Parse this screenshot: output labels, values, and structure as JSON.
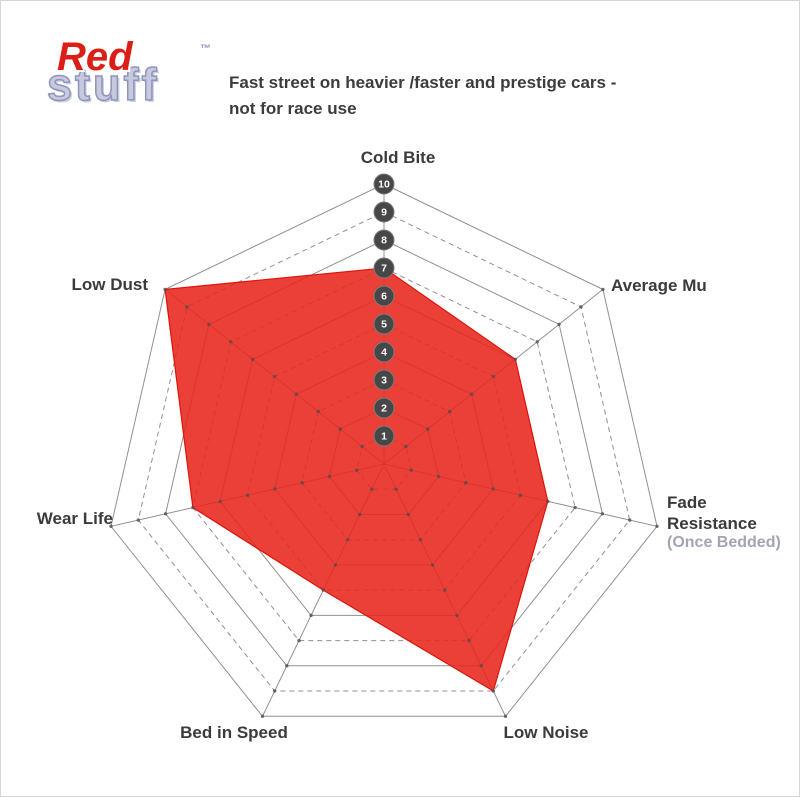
{
  "window": {
    "background": "#ffffff",
    "border_color": "#d6d6d6"
  },
  "logo": {
    "red": "Red",
    "stuff": "stuff",
    "tm": "™",
    "red_color": "#dc1f16",
    "stuff_fill": "#c7cade",
    "stuff_outline": "#8e94bb"
  },
  "subtitle": {
    "line1": "Fast street on heavier /faster and prestige cars -",
    "line2": "not for race use"
  },
  "chart_data": {
    "type": "radar",
    "axes": [
      "Cold Bite",
      "Average Mu",
      "Fade Resistance",
      "Low Noise",
      "Bed in Speed",
      "Wear Life",
      "Low Dust"
    ],
    "axis_sublabels": [
      "",
      "",
      "(Once Bedded)",
      "",
      "",
      "",
      ""
    ],
    "series": [
      {
        "name": "Redstuff",
        "values": [
          7,
          6,
          6,
          9,
          5,
          7,
          10
        ]
      }
    ],
    "scale": {
      "min": 1,
      "max": 10,
      "ticks": [
        1,
        2,
        3,
        4,
        5,
        6,
        7,
        8,
        9,
        10
      ]
    },
    "layout": {
      "start_axis": "top",
      "direction": "clockwise",
      "rings": "even rings solid, odd rings dashed",
      "tick_badges_on_axis": "Cold Bite",
      "legend": "none"
    },
    "colors": {
      "fill": "#e7261c",
      "stroke": "#dd1409",
      "grid": "#909090",
      "dot": "#4f4f4f",
      "badge": "#474747",
      "badge_border": "#7d7d7d",
      "badge_text": "#ffffff",
      "label": "#3b3b3b",
      "sublabel": "#a2a5b4"
    }
  }
}
